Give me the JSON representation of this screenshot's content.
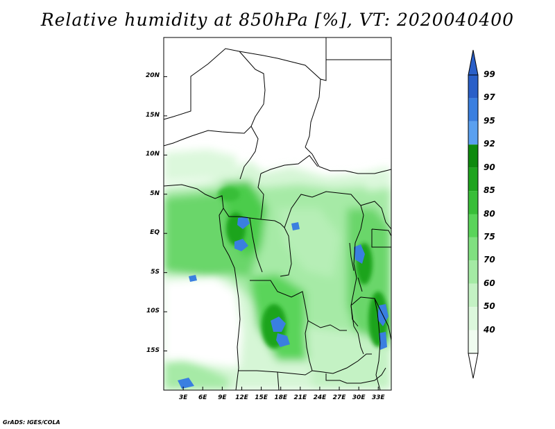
{
  "title": "Relative humidity at 850hPa [%], VT: 2020040400",
  "credit": "GrADS: IGES/COLA",
  "map": {
    "lat_range": [
      -20,
      25
    ],
    "lon_range": [
      0,
      35
    ],
    "lat_ticks": [
      {
        "value": 20,
        "label": "20N"
      },
      {
        "value": 15,
        "label": "15N"
      },
      {
        "value": 10,
        "label": "10N"
      },
      {
        "value": 5,
        "label": "5N"
      },
      {
        "value": 0,
        "label": "EQ"
      },
      {
        "value": -5,
        "label": "5S"
      },
      {
        "value": -10,
        "label": "10S"
      },
      {
        "value": -15,
        "label": "15S"
      }
    ],
    "lon_ticks": [
      {
        "value": 3,
        "label": "3E"
      },
      {
        "value": 6,
        "label": "6E"
      },
      {
        "value": 9,
        "label": "9E"
      },
      {
        "value": 12,
        "label": "12E"
      },
      {
        "value": 15,
        "label": "15E"
      },
      {
        "value": 18,
        "label": "18E"
      },
      {
        "value": 21,
        "label": "21E"
      },
      {
        "value": 24,
        "label": "24E"
      },
      {
        "value": 27,
        "label": "27E"
      },
      {
        "value": 30,
        "label": "30E"
      },
      {
        "value": 33,
        "label": "33E"
      }
    ]
  },
  "colorbar": {
    "levels": [
      {
        "label": "99",
        "color": "#2a5fc8"
      },
      {
        "label": "97",
        "color": "#3a7fe0"
      },
      {
        "label": "95",
        "color": "#5aa0f0"
      },
      {
        "label": "92",
        "color": "#0e8a0e"
      },
      {
        "label": "90",
        "color": "#1ea41e"
      },
      {
        "label": "85",
        "color": "#38be38"
      },
      {
        "label": "80",
        "color": "#5ad45a"
      },
      {
        "label": "75",
        "color": "#80e080"
      },
      {
        "label": "70",
        "color": "#a4eaa4"
      },
      {
        "label": "60",
        "color": "#c4f2c4"
      },
      {
        "label": "50",
        "color": "#dcf8dc"
      },
      {
        "label": "40",
        "color": "#f0fcf0"
      }
    ],
    "top_color": "#2a5fc8",
    "bottom_color": "#ffffff"
  }
}
